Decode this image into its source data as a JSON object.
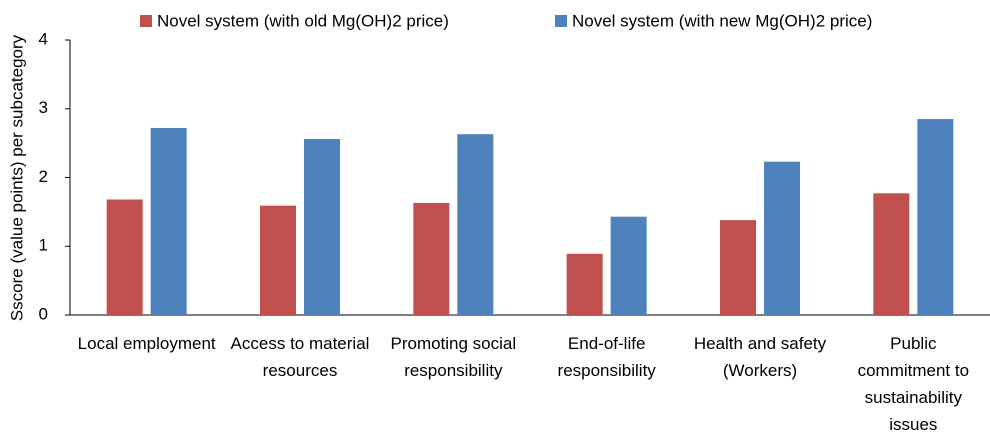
{
  "chart_data": {
    "type": "bar",
    "ylabel": "Sscore (value points) per subcategory",
    "categories": [
      "Local employment",
      "Access to material resources",
      "Promoting social responsibility",
      "End-of-life responsibility",
      "Health and safety (Workers)",
      "Public commitment to sustainability issues"
    ],
    "series": [
      {
        "name": "Novel system (with old Mg(OH)2 price)",
        "color": "#c0504d",
        "values": [
          1.68,
          1.59,
          1.63,
          0.89,
          1.38,
          1.77
        ]
      },
      {
        "name": "Novel system (with new Mg(OH)2 price)",
        "color": "#4f81bd",
        "values": [
          2.72,
          2.56,
          2.63,
          1.43,
          2.23,
          2.85
        ]
      }
    ],
    "ylim": [
      0,
      4
    ],
    "yticks": [
      0,
      1,
      2,
      3,
      4
    ],
    "grid": false,
    "legend": "top"
  }
}
